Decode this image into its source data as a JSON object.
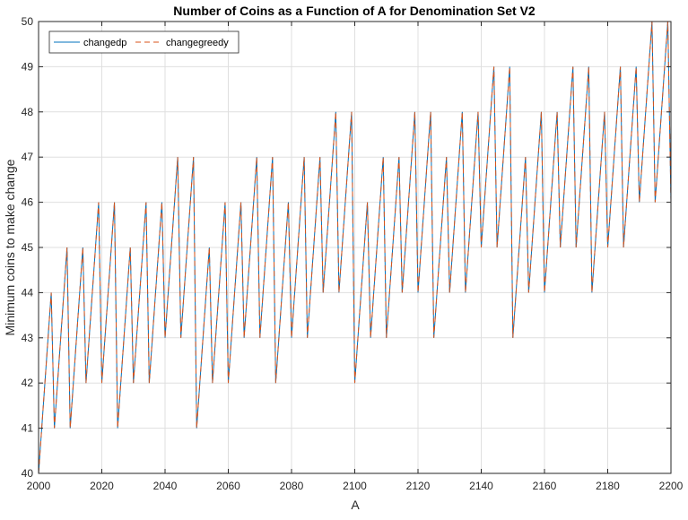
{
  "chart_data": {
    "type": "line",
    "title": "Number of Coins as a Function of A for Denomination Set V2",
    "xlabel": "A",
    "ylabel": "Minimum coins to make change",
    "xlim": [
      2000,
      2200
    ],
    "ylim": [
      40,
      50
    ],
    "xticks": [
      2000,
      2020,
      2040,
      2060,
      2080,
      2100,
      2120,
      2140,
      2160,
      2180,
      2200
    ],
    "yticks": [
      40,
      41,
      42,
      43,
      44,
      45,
      46,
      47,
      48,
      49,
      50
    ],
    "grid": true,
    "legend_position": "top-left",
    "x": [
      2000,
      2001,
      2002,
      2003,
      2004,
      2005,
      2006,
      2007,
      2008,
      2009,
      2010,
      2011,
      2012,
      2013,
      2014,
      2015,
      2016,
      2017,
      2018,
      2019,
      2020,
      2021,
      2022,
      2023,
      2024,
      2025,
      2026,
      2027,
      2028,
      2029,
      2030,
      2031,
      2032,
      2033,
      2034,
      2035,
      2036,
      2037,
      2038,
      2039,
      2040,
      2041,
      2042,
      2043,
      2044,
      2045,
      2046,
      2047,
      2048,
      2049,
      2050,
      2051,
      2052,
      2053,
      2054,
      2055,
      2056,
      2057,
      2058,
      2059,
      2060,
      2061,
      2062,
      2063,
      2064,
      2065,
      2066,
      2067,
      2068,
      2069,
      2070,
      2071,
      2072,
      2073,
      2074,
      2075,
      2076,
      2077,
      2078,
      2079,
      2080,
      2081,
      2082,
      2083,
      2084,
      2085,
      2086,
      2087,
      2088,
      2089,
      2090,
      2091,
      2092,
      2093,
      2094,
      2095,
      2096,
      2097,
      2098,
      2099,
      2100,
      2101,
      2102,
      2103,
      2104,
      2105,
      2106,
      2107,
      2108,
      2109,
      2110,
      2111,
      2112,
      2113,
      2114,
      2115,
      2116,
      2117,
      2118,
      2119,
      2120,
      2121,
      2122,
      2123,
      2124,
      2125,
      2126,
      2127,
      2128,
      2129,
      2130,
      2131,
      2132,
      2133,
      2134,
      2135,
      2136,
      2137,
      2138,
      2139,
      2140,
      2141,
      2142,
      2143,
      2144,
      2145,
      2146,
      2147,
      2148,
      2149,
      2150,
      2151,
      2152,
      2153,
      2154,
      2155,
      2156,
      2157,
      2158,
      2159,
      2160,
      2161,
      2162,
      2163,
      2164,
      2165,
      2166,
      2167,
      2168,
      2169,
      2170,
      2171,
      2172,
      2173,
      2174,
      2175,
      2176,
      2177,
      2178,
      2179,
      2180,
      2181,
      2182,
      2183,
      2184,
      2185,
      2186,
      2187,
      2188,
      2189,
      2190,
      2191,
      2192,
      2193,
      2194,
      2195,
      2196,
      2197,
      2198,
      2199,
      2200
    ],
    "series": [
      {
        "name": "changedp",
        "color": "#0072BD",
        "line_style": "solid",
        "y": [
          40,
          41,
          42,
          43,
          44,
          41,
          42,
          43,
          44,
          45,
          41,
          42,
          43,
          44,
          45,
          42,
          43,
          44,
          45,
          46,
          42,
          43,
          44,
          45,
          46,
          41,
          42,
          43,
          44,
          45,
          42,
          43,
          44,
          45,
          46,
          42,
          43,
          44,
          45,
          46,
          43,
          44,
          45,
          46,
          47,
          43,
          44,
          45,
          46,
          47,
          41,
          42,
          43,
          44,
          45,
          42,
          43,
          44,
          45,
          46,
          42,
          43,
          44,
          45,
          46,
          43,
          44,
          45,
          46,
          47,
          43,
          44,
          45,
          46,
          47,
          42,
          43,
          44,
          45,
          46,
          43,
          44,
          45,
          46,
          47,
          43,
          44,
          45,
          46,
          47,
          44,
          45,
          46,
          47,
          48,
          44,
          45,
          46,
          47,
          48,
          42,
          43,
          44,
          45,
          46,
          43,
          44,
          45,
          46,
          47,
          43,
          44,
          45,
          46,
          47,
          44,
          45,
          46,
          47,
          48,
          44,
          45,
          46,
          47,
          48,
          43,
          44,
          45,
          46,
          47,
          44,
          45,
          46,
          47,
          48,
          44,
          45,
          46,
          47,
          48,
          45,
          46,
          47,
          48,
          49,
          45,
          46,
          47,
          48,
          49,
          43,
          44,
          45,
          46,
          47,
          44,
          45,
          46,
          47,
          48,
          44,
          45,
          46,
          47,
          48,
          45,
          46,
          47,
          48,
          49,
          45,
          46,
          47,
          48,
          49,
          44,
          45,
          46,
          47,
          48,
          45,
          46,
          47,
          48,
          49,
          45,
          46,
          47,
          48,
          49,
          46,
          47,
          48,
          49,
          50,
          46,
          47,
          48,
          49,
          50,
          46
        ]
      },
      {
        "name": "changegreedy",
        "color": "#D95319",
        "line_style": "dashed",
        "y": [
          40,
          41,
          42,
          43,
          44,
          41,
          42,
          43,
          44,
          45,
          41,
          42,
          43,
          44,
          45,
          42,
          43,
          44,
          45,
          46,
          42,
          43,
          44,
          45,
          46,
          41,
          42,
          43,
          44,
          45,
          42,
          43,
          44,
          45,
          46,
          42,
          43,
          44,
          45,
          46,
          43,
          44,
          45,
          46,
          47,
          43,
          44,
          45,
          46,
          47,
          41,
          42,
          43,
          44,
          45,
          42,
          43,
          44,
          45,
          46,
          42,
          43,
          44,
          45,
          46,
          43,
          44,
          45,
          46,
          47,
          43,
          44,
          45,
          46,
          47,
          42,
          43,
          44,
          45,
          46,
          43,
          44,
          45,
          46,
          47,
          43,
          44,
          45,
          46,
          47,
          44,
          45,
          46,
          47,
          48,
          44,
          45,
          46,
          47,
          48,
          42,
          43,
          44,
          45,
          46,
          43,
          44,
          45,
          46,
          47,
          43,
          44,
          45,
          46,
          47,
          44,
          45,
          46,
          47,
          48,
          44,
          45,
          46,
          47,
          48,
          43,
          44,
          45,
          46,
          47,
          44,
          45,
          46,
          47,
          48,
          44,
          45,
          46,
          47,
          48,
          45,
          46,
          47,
          48,
          49,
          45,
          46,
          47,
          48,
          49,
          43,
          44,
          45,
          46,
          47,
          44,
          45,
          46,
          47,
          48,
          44,
          45,
          46,
          47,
          48,
          45,
          46,
          47,
          48,
          49,
          45,
          46,
          47,
          48,
          49,
          44,
          45,
          46,
          47,
          48,
          45,
          46,
          47,
          48,
          49,
          45,
          46,
          47,
          48,
          49,
          46,
          47,
          48,
          49,
          50,
          46,
          47,
          48,
          49,
          50,
          46
        ]
      }
    ]
  },
  "colors": {
    "grid": "#dfdfdf",
    "axis": "#262626",
    "background": "#ffffff"
  }
}
